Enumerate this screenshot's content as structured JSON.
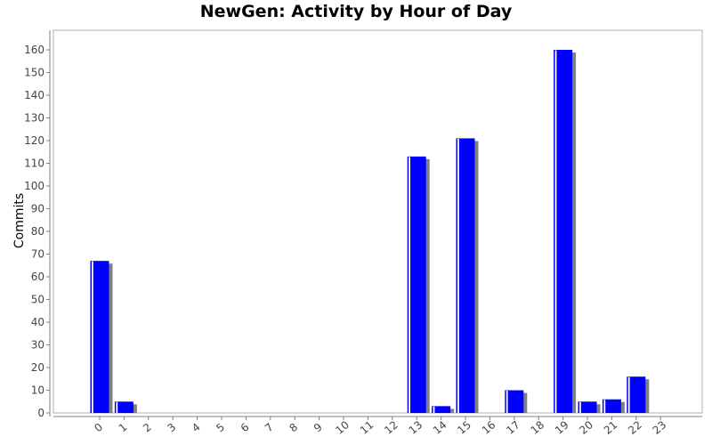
{
  "chart_data": {
    "type": "bar",
    "title": "NewGen: Activity by Hour of Day",
    "xlabel": "",
    "ylabel": "Commits",
    "categories": [
      "0",
      "1",
      "2",
      "3",
      "4",
      "5",
      "6",
      "7",
      "8",
      "9",
      "10",
      "11",
      "12",
      "13",
      "14",
      "15",
      "16",
      "17",
      "18",
      "19",
      "20",
      "21",
      "22",
      "23"
    ],
    "values": [
      67,
      5,
      0,
      0,
      0,
      0,
      0,
      0,
      0,
      0,
      0,
      0,
      0,
      113,
      3,
      121,
      0,
      10,
      0,
      160,
      5,
      6,
      16,
      0
    ],
    "ylim": [
      0,
      168
    ],
    "yticks": [
      0,
      10,
      20,
      30,
      40,
      50,
      60,
      70,
      80,
      90,
      100,
      110,
      120,
      130,
      140,
      150,
      160
    ],
    "grid": false,
    "legend": "none",
    "colors": {
      "bar": "#0000ff",
      "bar_highlight": "#ffffff",
      "shadow": "#808080",
      "axis": "#808080"
    }
  }
}
